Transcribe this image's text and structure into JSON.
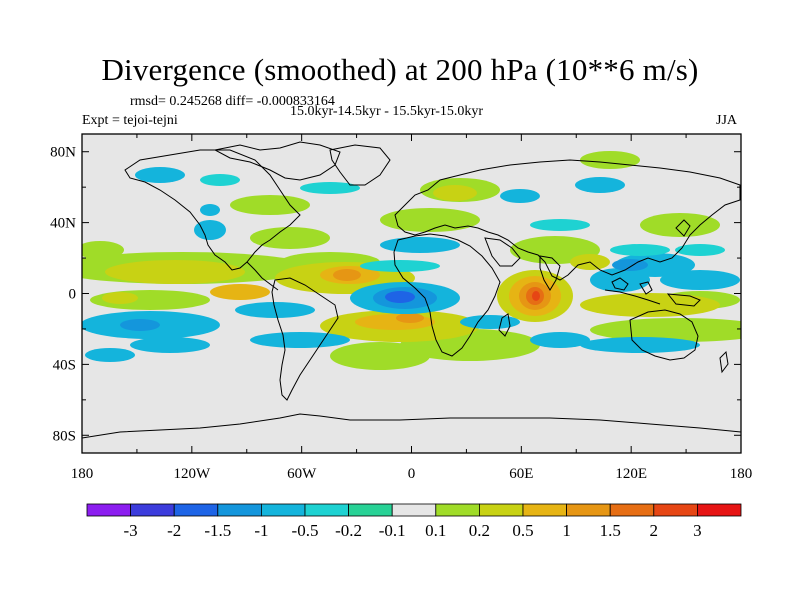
{
  "title": "Divergence (smoothed) at 200 hPa (10**6 m/s)",
  "stats_line": "rmsd= 0.245268 diff= -0.000833164",
  "experiment_line": "Expt = tejoi-tejni",
  "period_line": "15.0kyr-14.5kyr - 15.5kyr-15.0kyr",
  "season": "JJA",
  "axes": {
    "lat_ticks": [
      "80N",
      "40N",
      "0",
      "40S",
      "80S"
    ],
    "lon_ticks": [
      "180",
      "120W",
      "60W",
      "0",
      "60E",
      "120E",
      "180"
    ]
  },
  "colorbar": {
    "labels": [
      "-3",
      "-2",
      "-1.5",
      "-1",
      "-0.5",
      "-0.2",
      "-0.1",
      "0.1",
      "0.2",
      "0.5",
      "1",
      "1.5",
      "2",
      "3"
    ],
    "colors": [
      "#8c1ef0",
      "#3c3cdc",
      "#1e64e6",
      "#1496dc",
      "#14b4dc",
      "#1ed2d2",
      "#28d296",
      "#e6e6e6",
      "#a0dc28",
      "#c8d214",
      "#e6b414",
      "#e69614",
      "#e66e14",
      "#e64614",
      "#e61414"
    ]
  },
  "map": {
    "background_color": "#e6e6e6",
    "anomalies": [
      {
        "lon": -20,
        "lat": 0,
        "value": -1.5,
        "label": "tropical Atlantic minimum"
      },
      {
        "lon": 65,
        "lat": 0,
        "value": 2.0,
        "label": "western Indian Ocean maximum"
      },
      {
        "lon": -35,
        "lat": 10,
        "value": 1.0,
        "label": "northern tropical Atlantic maximum"
      },
      {
        "lon": 150,
        "lat": 20,
        "value": -1.0,
        "label": "western Pacific minimum"
      }
    ]
  }
}
